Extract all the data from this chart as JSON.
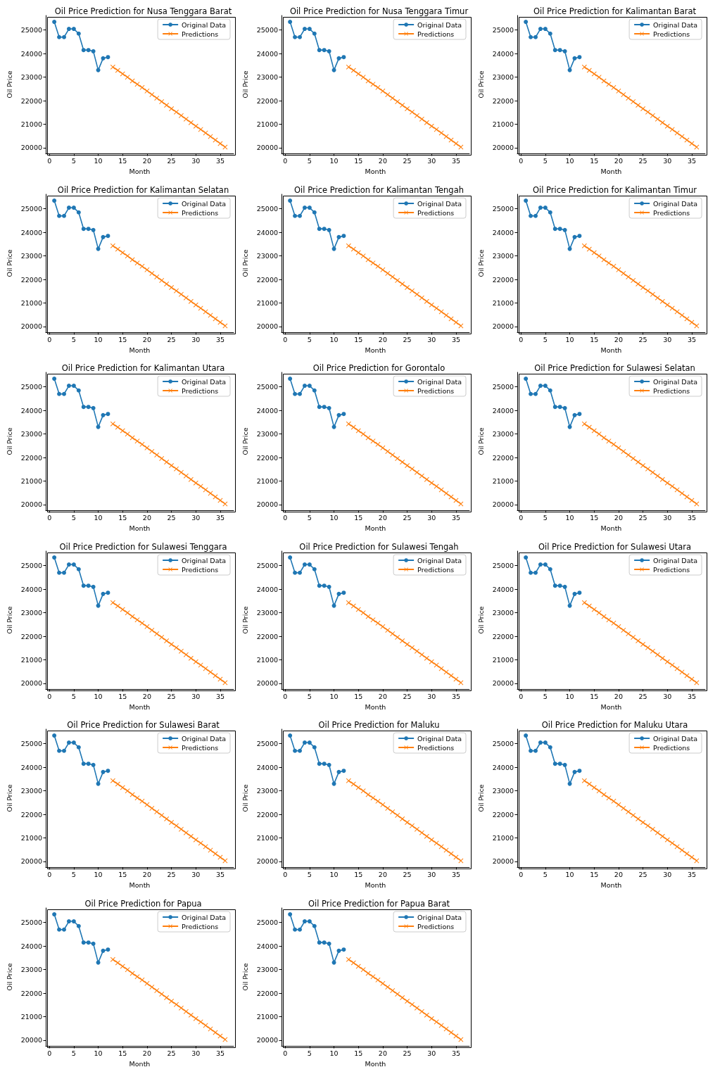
{
  "chart_data": [
    {
      "type": "line",
      "title": "Oil Price Prediction for Nusa Tenggara Barat",
      "xlabel": "Month",
      "ylabel": "Oil Price",
      "xlim": [
        -0.75,
        37.75
      ],
      "xticks": [
        0,
        5,
        10,
        15,
        20,
        25,
        30,
        35
      ],
      "ylim": [
        19760,
        25620
      ],
      "yticks": [
        20000,
        21000,
        22000,
        23000,
        24000,
        25000
      ],
      "grid": false,
      "legend": "top right",
      "series": [
        {
          "name": "Original Data",
          "color": "#1f77b4",
          "marker": "circle",
          "x": [
            1,
            2,
            3,
            4,
            5,
            6,
            7,
            8,
            9,
            10,
            11,
            12
          ],
          "values": [
            25350,
            24700,
            24700,
            25050,
            25050,
            24850,
            24150,
            24150,
            24100,
            23300,
            23800,
            23850
          ]
        },
        {
          "name": "Predictions",
          "color": "#ff7f0e",
          "marker": "cross",
          "x": [
            13,
            14,
            15,
            16,
            17,
            18,
            19,
            20,
            21,
            22,
            23,
            24,
            25,
            26,
            27,
            28,
            29,
            30,
            31,
            32,
            33,
            34,
            35,
            36
          ],
          "values": [
            23430,
            23290,
            23140,
            23000,
            22840,
            22700,
            22560,
            22410,
            22260,
            22110,
            21960,
            21810,
            21660,
            21520,
            21370,
            21220,
            21070,
            20920,
            20780,
            20630,
            20480,
            20330,
            20180,
            20030
          ]
        }
      ]
    },
    {
      "type": "line",
      "title": "Oil Price Prediction for Nusa Tenggara Timur",
      "xlabel": "Month",
      "ylabel": "Oil Price",
      "xlim": [
        -0.75,
        37.75
      ],
      "xticks": [
        0,
        5,
        10,
        15,
        20,
        25,
        30,
        35
      ],
      "ylim": [
        19760,
        25620
      ],
      "yticks": [
        20000,
        21000,
        22000,
        23000,
        24000,
        25000
      ],
      "grid": false,
      "legend": "top right",
      "series": [
        {
          "name": "Original Data",
          "color": "#1f77b4",
          "marker": "circle",
          "x": [
            1,
            2,
            3,
            4,
            5,
            6,
            7,
            8,
            9,
            10,
            11,
            12
          ],
          "values": [
            25350,
            24700,
            24700,
            25050,
            25050,
            24850,
            24150,
            24150,
            24100,
            23300,
            23800,
            23850
          ]
        },
        {
          "name": "Predictions",
          "color": "#ff7f0e",
          "marker": "cross",
          "x": [
            13,
            14,
            15,
            16,
            17,
            18,
            19,
            20,
            21,
            22,
            23,
            24,
            25,
            26,
            27,
            28,
            29,
            30,
            31,
            32,
            33,
            34,
            35,
            36
          ],
          "values": [
            23430,
            23290,
            23140,
            23000,
            22840,
            22700,
            22560,
            22410,
            22260,
            22110,
            21960,
            21810,
            21660,
            21520,
            21370,
            21220,
            21070,
            20920,
            20780,
            20630,
            20480,
            20330,
            20180,
            20030
          ]
        }
      ]
    },
    {
      "type": "line",
      "title": "Oil Price Prediction for Kalimantan Barat",
      "xlabel": "Month",
      "ylabel": "Oil Price",
      "xlim": [
        -0.75,
        37.75
      ],
      "xticks": [
        0,
        5,
        10,
        15,
        20,
        25,
        30,
        35
      ],
      "ylim": [
        19760,
        25620
      ],
      "yticks": [
        20000,
        21000,
        22000,
        23000,
        24000,
        25000
      ],
      "grid": false,
      "legend": "top right",
      "series": [
        {
          "name": "Original Data",
          "color": "#1f77b4",
          "marker": "circle",
          "x": [
            1,
            2,
            3,
            4,
            5,
            6,
            7,
            8,
            9,
            10,
            11,
            12
          ],
          "values": [
            25350,
            24700,
            24700,
            25050,
            25050,
            24850,
            24150,
            24150,
            24100,
            23300,
            23800,
            23850
          ]
        },
        {
          "name": "Predictions",
          "color": "#ff7f0e",
          "marker": "cross",
          "x": [
            13,
            14,
            15,
            16,
            17,
            18,
            19,
            20,
            21,
            22,
            23,
            24,
            25,
            26,
            27,
            28,
            29,
            30,
            31,
            32,
            33,
            34,
            35,
            36
          ],
          "values": [
            23430,
            23290,
            23140,
            23000,
            22840,
            22700,
            22560,
            22410,
            22260,
            22110,
            21960,
            21810,
            21660,
            21520,
            21370,
            21220,
            21070,
            20920,
            20780,
            20630,
            20480,
            20330,
            20180,
            20030
          ]
        }
      ]
    },
    {
      "type": "line",
      "title": "Oil Price Prediction for Kalimantan Selatan",
      "xlabel": "Month",
      "ylabel": "Oil Price",
      "xlim": [
        -0.75,
        37.75
      ],
      "xticks": [
        0,
        5,
        10,
        15,
        20,
        25,
        30,
        35
      ],
      "ylim": [
        19760,
        25620
      ],
      "yticks": [
        20000,
        21000,
        22000,
        23000,
        24000,
        25000
      ],
      "grid": false,
      "legend": "top right",
      "series": [
        {
          "name": "Original Data",
          "color": "#1f77b4",
          "marker": "circle",
          "x": [
            1,
            2,
            3,
            4,
            5,
            6,
            7,
            8,
            9,
            10,
            11,
            12
          ],
          "values": [
            25350,
            24700,
            24700,
            25050,
            25050,
            24850,
            24150,
            24150,
            24100,
            23300,
            23800,
            23850
          ]
        },
        {
          "name": "Predictions",
          "color": "#ff7f0e",
          "marker": "cross",
          "x": [
            13,
            14,
            15,
            16,
            17,
            18,
            19,
            20,
            21,
            22,
            23,
            24,
            25,
            26,
            27,
            28,
            29,
            30,
            31,
            32,
            33,
            34,
            35,
            36
          ],
          "values": [
            23430,
            23290,
            23140,
            23000,
            22840,
            22700,
            22560,
            22410,
            22260,
            22110,
            21960,
            21810,
            21660,
            21520,
            21370,
            21220,
            21070,
            20920,
            20780,
            20630,
            20480,
            20330,
            20180,
            20030
          ]
        }
      ]
    },
    {
      "type": "line",
      "title": "Oil Price Prediction for Kalimantan Tengah",
      "xlabel": "Month",
      "ylabel": "Oil Price",
      "xlim": [
        -0.75,
        37.75
      ],
      "xticks": [
        0,
        5,
        10,
        15,
        20,
        25,
        30,
        35
      ],
      "ylim": [
        19760,
        25620
      ],
      "yticks": [
        20000,
        21000,
        22000,
        23000,
        24000,
        25000
      ],
      "grid": false,
      "legend": "top right",
      "series": [
        {
          "name": "Original Data",
          "color": "#1f77b4",
          "marker": "circle",
          "x": [
            1,
            2,
            3,
            4,
            5,
            6,
            7,
            8,
            9,
            10,
            11,
            12
          ],
          "values": [
            25350,
            24700,
            24700,
            25050,
            25050,
            24850,
            24150,
            24150,
            24100,
            23300,
            23800,
            23850
          ]
        },
        {
          "name": "Predictions",
          "color": "#ff7f0e",
          "marker": "cross",
          "x": [
            13,
            14,
            15,
            16,
            17,
            18,
            19,
            20,
            21,
            22,
            23,
            24,
            25,
            26,
            27,
            28,
            29,
            30,
            31,
            32,
            33,
            34,
            35,
            36
          ],
          "values": [
            23430,
            23290,
            23140,
            23000,
            22840,
            22700,
            22560,
            22410,
            22260,
            22110,
            21960,
            21810,
            21660,
            21520,
            21370,
            21220,
            21070,
            20920,
            20780,
            20630,
            20480,
            20330,
            20180,
            20030
          ]
        }
      ]
    },
    {
      "type": "line",
      "title": "Oil Price Prediction for Kalimantan Timur",
      "xlabel": "Month",
      "ylabel": "Oil Price",
      "xlim": [
        -0.75,
        37.75
      ],
      "xticks": [
        0,
        5,
        10,
        15,
        20,
        25,
        30,
        35
      ],
      "ylim": [
        19760,
        25620
      ],
      "yticks": [
        20000,
        21000,
        22000,
        23000,
        24000,
        25000
      ],
      "grid": false,
      "legend": "top right",
      "series": [
        {
          "name": "Original Data",
          "color": "#1f77b4",
          "marker": "circle",
          "x": [
            1,
            2,
            3,
            4,
            5,
            6,
            7,
            8,
            9,
            10,
            11,
            12
          ],
          "values": [
            25350,
            24700,
            24700,
            25050,
            25050,
            24850,
            24150,
            24150,
            24100,
            23300,
            23800,
            23850
          ]
        },
        {
          "name": "Predictions",
          "color": "#ff7f0e",
          "marker": "cross",
          "x": [
            13,
            14,
            15,
            16,
            17,
            18,
            19,
            20,
            21,
            22,
            23,
            24,
            25,
            26,
            27,
            28,
            29,
            30,
            31,
            32,
            33,
            34,
            35,
            36
          ],
          "values": [
            23430,
            23290,
            23140,
            23000,
            22840,
            22700,
            22560,
            22410,
            22260,
            22110,
            21960,
            21810,
            21660,
            21520,
            21370,
            21220,
            21070,
            20920,
            20780,
            20630,
            20480,
            20330,
            20180,
            20030
          ]
        }
      ]
    },
    {
      "type": "line",
      "title": "Oil Price Prediction for Kalimantan Utara",
      "xlabel": "Month",
      "ylabel": "Oil Price",
      "xlim": [
        -0.75,
        37.75
      ],
      "xticks": [
        0,
        5,
        10,
        15,
        20,
        25,
        30,
        35
      ],
      "ylim": [
        19760,
        25620
      ],
      "yticks": [
        20000,
        21000,
        22000,
        23000,
        24000,
        25000
      ],
      "grid": false,
      "legend": "top right",
      "series": [
        {
          "name": "Original Data",
          "color": "#1f77b4",
          "marker": "circle",
          "x": [
            1,
            2,
            3,
            4,
            5,
            6,
            7,
            8,
            9,
            10,
            11,
            12
          ],
          "values": [
            25350,
            24700,
            24700,
            25050,
            25050,
            24850,
            24150,
            24150,
            24100,
            23300,
            23800,
            23850
          ]
        },
        {
          "name": "Predictions",
          "color": "#ff7f0e",
          "marker": "cross",
          "x": [
            13,
            14,
            15,
            16,
            17,
            18,
            19,
            20,
            21,
            22,
            23,
            24,
            25,
            26,
            27,
            28,
            29,
            30,
            31,
            32,
            33,
            34,
            35,
            36
          ],
          "values": [
            23430,
            23290,
            23140,
            23000,
            22840,
            22700,
            22560,
            22410,
            22260,
            22110,
            21960,
            21810,
            21660,
            21520,
            21370,
            21220,
            21070,
            20920,
            20780,
            20630,
            20480,
            20330,
            20180,
            20030
          ]
        }
      ]
    },
    {
      "type": "line",
      "title": "Oil Price Prediction for Gorontalo",
      "xlabel": "Month",
      "ylabel": "Oil Price",
      "xlim": [
        -0.75,
        37.75
      ],
      "xticks": [
        0,
        5,
        10,
        15,
        20,
        25,
        30,
        35
      ],
      "ylim": [
        19760,
        25620
      ],
      "yticks": [
        20000,
        21000,
        22000,
        23000,
        24000,
        25000
      ],
      "grid": false,
      "legend": "top right",
      "series": [
        {
          "name": "Original Data",
          "color": "#1f77b4",
          "marker": "circle",
          "x": [
            1,
            2,
            3,
            4,
            5,
            6,
            7,
            8,
            9,
            10,
            11,
            12
          ],
          "values": [
            25350,
            24700,
            24700,
            25050,
            25050,
            24850,
            24150,
            24150,
            24100,
            23300,
            23800,
            23850
          ]
        },
        {
          "name": "Predictions",
          "color": "#ff7f0e",
          "marker": "cross",
          "x": [
            13,
            14,
            15,
            16,
            17,
            18,
            19,
            20,
            21,
            22,
            23,
            24,
            25,
            26,
            27,
            28,
            29,
            30,
            31,
            32,
            33,
            34,
            35,
            36
          ],
          "values": [
            23430,
            23290,
            23140,
            23000,
            22840,
            22700,
            22560,
            22410,
            22260,
            22110,
            21960,
            21810,
            21660,
            21520,
            21370,
            21220,
            21070,
            20920,
            20780,
            20630,
            20480,
            20330,
            20180,
            20030
          ]
        }
      ]
    },
    {
      "type": "line",
      "title": "Oil Price Prediction for Sulawesi Selatan",
      "xlabel": "Month",
      "ylabel": "Oil Price",
      "xlim": [
        -0.75,
        37.75
      ],
      "xticks": [
        0,
        5,
        10,
        15,
        20,
        25,
        30,
        35
      ],
      "ylim": [
        19760,
        25620
      ],
      "yticks": [
        20000,
        21000,
        22000,
        23000,
        24000,
        25000
      ],
      "grid": false,
      "legend": "top right",
      "series": [
        {
          "name": "Original Data",
          "color": "#1f77b4",
          "marker": "circle",
          "x": [
            1,
            2,
            3,
            4,
            5,
            6,
            7,
            8,
            9,
            10,
            11,
            12
          ],
          "values": [
            25350,
            24700,
            24700,
            25050,
            25050,
            24850,
            24150,
            24150,
            24100,
            23300,
            23800,
            23850
          ]
        },
        {
          "name": "Predictions",
          "color": "#ff7f0e",
          "marker": "cross",
          "x": [
            13,
            14,
            15,
            16,
            17,
            18,
            19,
            20,
            21,
            22,
            23,
            24,
            25,
            26,
            27,
            28,
            29,
            30,
            31,
            32,
            33,
            34,
            35,
            36
          ],
          "values": [
            23430,
            23290,
            23140,
            23000,
            22840,
            22700,
            22560,
            22410,
            22260,
            22110,
            21960,
            21810,
            21660,
            21520,
            21370,
            21220,
            21070,
            20920,
            20780,
            20630,
            20480,
            20330,
            20180,
            20030
          ]
        }
      ]
    },
    {
      "type": "line",
      "title": "Oil Price Prediction for Sulawesi Tenggara",
      "xlabel": "Month",
      "ylabel": "Oil Price",
      "xlim": [
        -0.75,
        37.75
      ],
      "xticks": [
        0,
        5,
        10,
        15,
        20,
        25,
        30,
        35
      ],
      "ylim": [
        19760,
        25620
      ],
      "yticks": [
        20000,
        21000,
        22000,
        23000,
        24000,
        25000
      ],
      "grid": false,
      "legend": "top right",
      "series": [
        {
          "name": "Original Data",
          "color": "#1f77b4",
          "marker": "circle",
          "x": [
            1,
            2,
            3,
            4,
            5,
            6,
            7,
            8,
            9,
            10,
            11,
            12
          ],
          "values": [
            25350,
            24700,
            24700,
            25050,
            25050,
            24850,
            24150,
            24150,
            24100,
            23300,
            23800,
            23850
          ]
        },
        {
          "name": "Predictions",
          "color": "#ff7f0e",
          "marker": "cross",
          "x": [
            13,
            14,
            15,
            16,
            17,
            18,
            19,
            20,
            21,
            22,
            23,
            24,
            25,
            26,
            27,
            28,
            29,
            30,
            31,
            32,
            33,
            34,
            35,
            36
          ],
          "values": [
            23430,
            23290,
            23140,
            23000,
            22840,
            22700,
            22560,
            22410,
            22260,
            22110,
            21960,
            21810,
            21660,
            21520,
            21370,
            21220,
            21070,
            20920,
            20780,
            20630,
            20480,
            20330,
            20180,
            20030
          ]
        }
      ]
    },
    {
      "type": "line",
      "title": "Oil Price Prediction for Sulawesi Tengah",
      "xlabel": "Month",
      "ylabel": "Oil Price",
      "xlim": [
        -0.75,
        37.75
      ],
      "xticks": [
        0,
        5,
        10,
        15,
        20,
        25,
        30,
        35
      ],
      "ylim": [
        19760,
        25620
      ],
      "yticks": [
        20000,
        21000,
        22000,
        23000,
        24000,
        25000
      ],
      "grid": false,
      "legend": "top right",
      "series": [
        {
          "name": "Original Data",
          "color": "#1f77b4",
          "marker": "circle",
          "x": [
            1,
            2,
            3,
            4,
            5,
            6,
            7,
            8,
            9,
            10,
            11,
            12
          ],
          "values": [
            25350,
            24700,
            24700,
            25050,
            25050,
            24850,
            24150,
            24150,
            24100,
            23300,
            23800,
            23850
          ]
        },
        {
          "name": "Predictions",
          "color": "#ff7f0e",
          "marker": "cross",
          "x": [
            13,
            14,
            15,
            16,
            17,
            18,
            19,
            20,
            21,
            22,
            23,
            24,
            25,
            26,
            27,
            28,
            29,
            30,
            31,
            32,
            33,
            34,
            35,
            36
          ],
          "values": [
            23430,
            23290,
            23140,
            23000,
            22840,
            22700,
            22560,
            22410,
            22260,
            22110,
            21960,
            21810,
            21660,
            21520,
            21370,
            21220,
            21070,
            20920,
            20780,
            20630,
            20480,
            20330,
            20180,
            20030
          ]
        }
      ]
    },
    {
      "type": "line",
      "title": "Oil Price Prediction for Sulawesi Utara",
      "xlabel": "Month",
      "ylabel": "Oil Price",
      "xlim": [
        -0.75,
        37.75
      ],
      "xticks": [
        0,
        5,
        10,
        15,
        20,
        25,
        30,
        35
      ],
      "ylim": [
        19760,
        25620
      ],
      "yticks": [
        20000,
        21000,
        22000,
        23000,
        24000,
        25000
      ],
      "grid": false,
      "legend": "top right",
      "series": [
        {
          "name": "Original Data",
          "color": "#1f77b4",
          "marker": "circle",
          "x": [
            1,
            2,
            3,
            4,
            5,
            6,
            7,
            8,
            9,
            10,
            11,
            12
          ],
          "values": [
            25350,
            24700,
            24700,
            25050,
            25050,
            24850,
            24150,
            24150,
            24100,
            23300,
            23800,
            23850
          ]
        },
        {
          "name": "Predictions",
          "color": "#ff7f0e",
          "marker": "cross",
          "x": [
            13,
            14,
            15,
            16,
            17,
            18,
            19,
            20,
            21,
            22,
            23,
            24,
            25,
            26,
            27,
            28,
            29,
            30,
            31,
            32,
            33,
            34,
            35,
            36
          ],
          "values": [
            23430,
            23290,
            23140,
            23000,
            22840,
            22700,
            22560,
            22410,
            22260,
            22110,
            21960,
            21810,
            21660,
            21520,
            21370,
            21220,
            21070,
            20920,
            20780,
            20630,
            20480,
            20330,
            20180,
            20030
          ]
        }
      ]
    },
    {
      "type": "line",
      "title": "Oil Price Prediction for Sulawesi Barat",
      "xlabel": "Month",
      "ylabel": "Oil Price",
      "xlim": [
        -0.75,
        37.75
      ],
      "xticks": [
        0,
        5,
        10,
        15,
        20,
        25,
        30,
        35
      ],
      "ylim": [
        19760,
        25620
      ],
      "yticks": [
        20000,
        21000,
        22000,
        23000,
        24000,
        25000
      ],
      "grid": false,
      "legend": "top right",
      "series": [
        {
          "name": "Original Data",
          "color": "#1f77b4",
          "marker": "circle",
          "x": [
            1,
            2,
            3,
            4,
            5,
            6,
            7,
            8,
            9,
            10,
            11,
            12
          ],
          "values": [
            25350,
            24700,
            24700,
            25050,
            25050,
            24850,
            24150,
            24150,
            24100,
            23300,
            23800,
            23850
          ]
        },
        {
          "name": "Predictions",
          "color": "#ff7f0e",
          "marker": "cross",
          "x": [
            13,
            14,
            15,
            16,
            17,
            18,
            19,
            20,
            21,
            22,
            23,
            24,
            25,
            26,
            27,
            28,
            29,
            30,
            31,
            32,
            33,
            34,
            35,
            36
          ],
          "values": [
            23430,
            23290,
            23140,
            23000,
            22840,
            22700,
            22560,
            22410,
            22260,
            22110,
            21960,
            21810,
            21660,
            21520,
            21370,
            21220,
            21070,
            20920,
            20780,
            20630,
            20480,
            20330,
            20180,
            20030
          ]
        }
      ]
    },
    {
      "type": "line",
      "title": "Oil Price Prediction for Maluku",
      "xlabel": "Month",
      "ylabel": "Oil Price",
      "xlim": [
        -0.75,
        37.75
      ],
      "xticks": [
        0,
        5,
        10,
        15,
        20,
        25,
        30,
        35
      ],
      "ylim": [
        19760,
        25620
      ],
      "yticks": [
        20000,
        21000,
        22000,
        23000,
        24000,
        25000
      ],
      "grid": false,
      "legend": "top right",
      "series": [
        {
          "name": "Original Data",
          "color": "#1f77b4",
          "marker": "circle",
          "x": [
            1,
            2,
            3,
            4,
            5,
            6,
            7,
            8,
            9,
            10,
            11,
            12
          ],
          "values": [
            25350,
            24700,
            24700,
            25050,
            25050,
            24850,
            24150,
            24150,
            24100,
            23300,
            23800,
            23850
          ]
        },
        {
          "name": "Predictions",
          "color": "#ff7f0e",
          "marker": "cross",
          "x": [
            13,
            14,
            15,
            16,
            17,
            18,
            19,
            20,
            21,
            22,
            23,
            24,
            25,
            26,
            27,
            28,
            29,
            30,
            31,
            32,
            33,
            34,
            35,
            36
          ],
          "values": [
            23430,
            23290,
            23140,
            23000,
            22840,
            22700,
            22560,
            22410,
            22260,
            22110,
            21960,
            21810,
            21660,
            21520,
            21370,
            21220,
            21070,
            20920,
            20780,
            20630,
            20480,
            20330,
            20180,
            20030
          ]
        }
      ]
    },
    {
      "type": "line",
      "title": "Oil Price Prediction for Maluku Utara",
      "xlabel": "Month",
      "ylabel": "Oil Price",
      "xlim": [
        -0.75,
        37.75
      ],
      "xticks": [
        0,
        5,
        10,
        15,
        20,
        25,
        30,
        35
      ],
      "ylim": [
        19760,
        25620
      ],
      "yticks": [
        20000,
        21000,
        22000,
        23000,
        24000,
        25000
      ],
      "grid": false,
      "legend": "top right",
      "series": [
        {
          "name": "Original Data",
          "color": "#1f77b4",
          "marker": "circle",
          "x": [
            1,
            2,
            3,
            4,
            5,
            6,
            7,
            8,
            9,
            10,
            11,
            12
          ],
          "values": [
            25350,
            24700,
            24700,
            25050,
            25050,
            24850,
            24150,
            24150,
            24100,
            23300,
            23800,
            23850
          ]
        },
        {
          "name": "Predictions",
          "color": "#ff7f0e",
          "marker": "cross",
          "x": [
            13,
            14,
            15,
            16,
            17,
            18,
            19,
            20,
            21,
            22,
            23,
            24,
            25,
            26,
            27,
            28,
            29,
            30,
            31,
            32,
            33,
            34,
            35,
            36
          ],
          "values": [
            23430,
            23290,
            23140,
            23000,
            22840,
            22700,
            22560,
            22410,
            22260,
            22110,
            21960,
            21810,
            21660,
            21520,
            21370,
            21220,
            21070,
            20920,
            20780,
            20630,
            20480,
            20330,
            20180,
            20030
          ]
        }
      ]
    },
    {
      "type": "line",
      "title": "Oil Price Prediction for Papua",
      "xlabel": "Month",
      "ylabel": "Oil Price",
      "xlim": [
        -0.75,
        37.75
      ],
      "xticks": [
        0,
        5,
        10,
        15,
        20,
        25,
        30,
        35
      ],
      "ylim": [
        19760,
        25620
      ],
      "yticks": [
        20000,
        21000,
        22000,
        23000,
        24000,
        25000
      ],
      "grid": false,
      "legend": "top right",
      "series": [
        {
          "name": "Original Data",
          "color": "#1f77b4",
          "marker": "circle",
          "x": [
            1,
            2,
            3,
            4,
            5,
            6,
            7,
            8,
            9,
            10,
            11,
            12
          ],
          "values": [
            25350,
            24700,
            24700,
            25050,
            25050,
            24850,
            24150,
            24150,
            24100,
            23300,
            23800,
            23850
          ]
        },
        {
          "name": "Predictions",
          "color": "#ff7f0e",
          "marker": "cross",
          "x": [
            13,
            14,
            15,
            16,
            17,
            18,
            19,
            20,
            21,
            22,
            23,
            24,
            25,
            26,
            27,
            28,
            29,
            30,
            31,
            32,
            33,
            34,
            35,
            36
          ],
          "values": [
            23430,
            23290,
            23140,
            23000,
            22840,
            22700,
            22560,
            22410,
            22260,
            22110,
            21960,
            21810,
            21660,
            21520,
            21370,
            21220,
            21070,
            20920,
            20780,
            20630,
            20480,
            20330,
            20180,
            20030
          ]
        }
      ]
    },
    {
      "type": "line",
      "title": "Oil Price Prediction for Papua Barat",
      "xlabel": "Month",
      "ylabel": "Oil Price",
      "xlim": [
        -0.75,
        37.75
      ],
      "xticks": [
        0,
        5,
        10,
        15,
        20,
        25,
        30,
        35
      ],
      "ylim": [
        19760,
        25620
      ],
      "yticks": [
        20000,
        21000,
        22000,
        23000,
        24000,
        25000
      ],
      "grid": false,
      "legend": "top right",
      "series": [
        {
          "name": "Original Data",
          "color": "#1f77b4",
          "marker": "circle",
          "x": [
            1,
            2,
            3,
            4,
            5,
            6,
            7,
            8,
            9,
            10,
            11,
            12
          ],
          "values": [
            25350,
            24700,
            24700,
            25050,
            25050,
            24850,
            24150,
            24150,
            24100,
            23300,
            23800,
            23850
          ]
        },
        {
          "name": "Predictions",
          "color": "#ff7f0e",
          "marker": "cross",
          "x": [
            13,
            14,
            15,
            16,
            17,
            18,
            19,
            20,
            21,
            22,
            23,
            24,
            25,
            26,
            27,
            28,
            29,
            30,
            31,
            32,
            33,
            34,
            35,
            36
          ],
          "values": [
            23430,
            23290,
            23140,
            23000,
            22840,
            22700,
            22560,
            22410,
            22260,
            22110,
            21960,
            21810,
            21660,
            21520,
            21370,
            21220,
            21070,
            20920,
            20780,
            20630,
            20480,
            20330,
            20180,
            20030
          ]
        }
      ]
    }
  ]
}
